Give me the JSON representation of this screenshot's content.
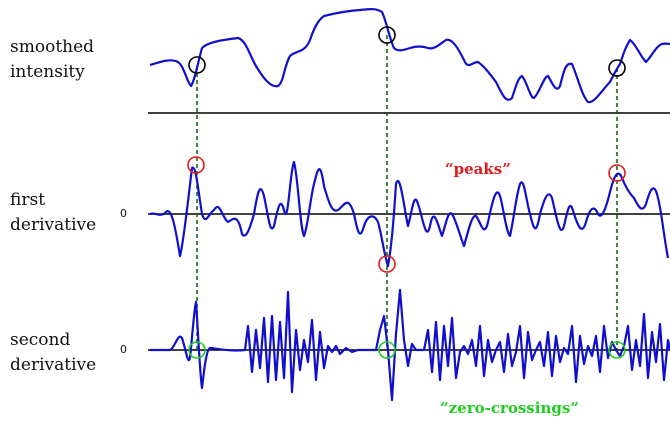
{
  "rows": [
    {
      "label": "smoothed\nintensity"
    },
    {
      "label": "first\nderivative",
      "zero_label": "0"
    },
    {
      "label": "second\nderivative",
      "zero_label": "0"
    }
  ],
  "annotations": {
    "peaks": "“peaks”",
    "zero_crossings": "“zero-crossings”"
  },
  "colors": {
    "signal": "#1010cc",
    "axis": "#000000",
    "guide": "#0b5d0b",
    "intensity_marker": "#000000",
    "peak_marker": "#e01b1b",
    "zero_crossing_marker": "#22cc22"
  }
}
